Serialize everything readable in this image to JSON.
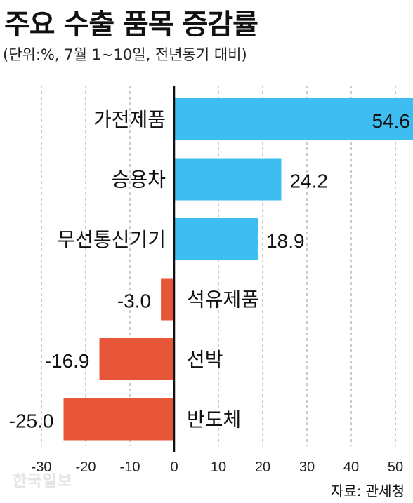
{
  "header": {
    "title": "주요 수출 품목 증감률",
    "subtitle": "(단위:%, 7월 1~10일, 전년동기 대비)"
  },
  "footer": {
    "source": "자료: 관세청",
    "watermark": "한국일보"
  },
  "colors": {
    "positive": "#3dbdf0",
    "negative": "#e8563a",
    "grid": "#aaaaaa",
    "axis": "#111111"
  },
  "chart_data": {
    "type": "bar",
    "orientation": "horizontal",
    "categories": [
      "가전제품",
      "승용차",
      "무선통신기기",
      "석유제품",
      "선박",
      "반도체"
    ],
    "values": [
      54.6,
      24.2,
      18.9,
      -3.0,
      -16.9,
      -25.0
    ],
    "value_labels": [
      "54.6",
      "24.2",
      "18.9",
      "-3.0",
      "-16.9",
      "-25.0"
    ],
    "xlim": [
      -30,
      55
    ],
    "xticks": [
      -30,
      -20,
      -10,
      0,
      10,
      20,
      30,
      40,
      50
    ],
    "grid": true
  }
}
